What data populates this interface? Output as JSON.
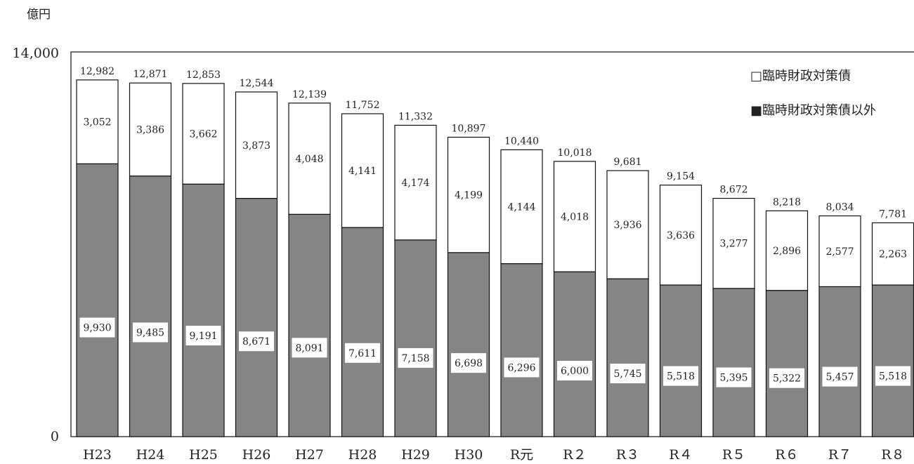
{
  "chart_data": {
    "type": "bar",
    "stacked": true,
    "unit_label": "億円",
    "ylim": [
      0,
      14000
    ],
    "y_ticks": [
      "0",
      "14,000"
    ],
    "categories": [
      "H23",
      "H24",
      "H25",
      "H26",
      "H27",
      "H28",
      "H29",
      "H30",
      "R元",
      "R２",
      "R３",
      "R４",
      "R５",
      "R６",
      "R７",
      "R８"
    ],
    "totals": [
      12982,
      12871,
      12853,
      12544,
      12139,
      11752,
      11332,
      10897,
      10440,
      10018,
      9681,
      9154,
      8672,
      8218,
      8034,
      7781
    ],
    "total_labels": [
      "12,982",
      "12,871",
      "12,853",
      "12,544",
      "12,139",
      "11,752",
      "11,332",
      "10,897",
      "10,440",
      "10,018",
      "9,681",
      "9,154",
      "8,672",
      "8,218",
      "8,034",
      "7,781"
    ],
    "series": [
      {
        "name": "臨時財政対策債以外",
        "color": "#858585",
        "values": [
          9930,
          9485,
          9191,
          8671,
          8091,
          7611,
          7158,
          6698,
          6296,
          6000,
          5745,
          5518,
          5395,
          5322,
          5457,
          5518
        ],
        "labels": [
          "9,930",
          "9,485",
          "9,191",
          "8,671",
          "8,091",
          "7,611",
          "7,158",
          "6,698",
          "6,296",
          "6,000",
          "5,745",
          "5,518",
          "5,395",
          "5,322",
          "5,457",
          "5,518"
        ]
      },
      {
        "name": "臨時財政対策債",
        "color": "#ffffff",
        "values": [
          3052,
          3386,
          3662,
          3873,
          4048,
          4141,
          4174,
          4199,
          4144,
          4018,
          3936,
          3636,
          3277,
          2896,
          2577,
          2263
        ],
        "labels": [
          "3,052",
          "3,386",
          "3,662",
          "3,873",
          "4,048",
          "4,141",
          "4,174",
          "4,199",
          "4,144",
          "4,018",
          "3,936",
          "3,636",
          "3,277",
          "2,896",
          "2,577",
          "2,263"
        ]
      }
    ],
    "legend": {
      "position": "top-right",
      "items": [
        {
          "label": "□臨時財政対策債",
          "series": "臨時財政対策債"
        },
        {
          "label": "■臨時財政対策債以外",
          "series": "臨時財政対策債以外"
        }
      ]
    },
    "grid": false
  }
}
